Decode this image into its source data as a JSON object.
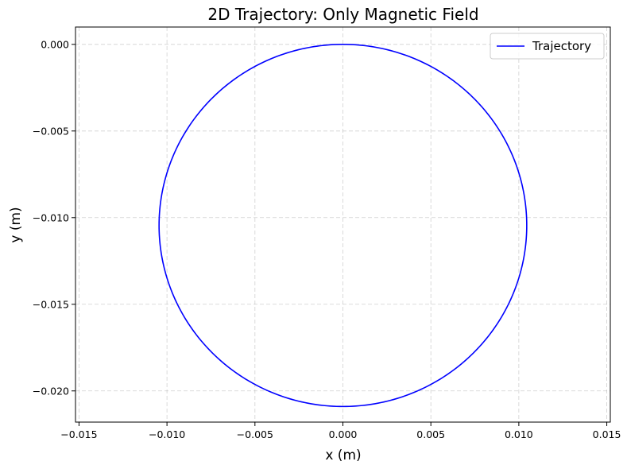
{
  "chart_data": {
    "type": "line",
    "title": "2D Trajectory: Only Magnetic Field",
    "xlabel": "x (m)",
    "ylabel": "y (m)",
    "xlim": [
      -0.0152,
      0.0152
    ],
    "ylim": [
      -0.0218,
      0.001
    ],
    "grid": true,
    "grid_style": "dashed",
    "legend_position": "top-right",
    "x_ticks": [
      -0.015,
      -0.01,
      -0.005,
      0.0,
      0.005,
      0.01,
      0.015
    ],
    "x_tick_labels": [
      "−0.015",
      "−0.010",
      "−0.005",
      "0.000",
      "0.005",
      "0.010",
      "0.015"
    ],
    "y_ticks": [
      0.0,
      -0.005,
      -0.01,
      -0.015,
      -0.02
    ],
    "y_tick_labels": [
      "0.000",
      "−0.005",
      "−0.010",
      "−0.015",
      "−0.020"
    ],
    "series": [
      {
        "name": "Trajectory",
        "color": "#0000ff",
        "shape": "circle",
        "center": [
          0.0,
          -0.01045
        ],
        "radius": 0.01045,
        "start_point": [
          0.0,
          0.0
        ]
      }
    ]
  }
}
